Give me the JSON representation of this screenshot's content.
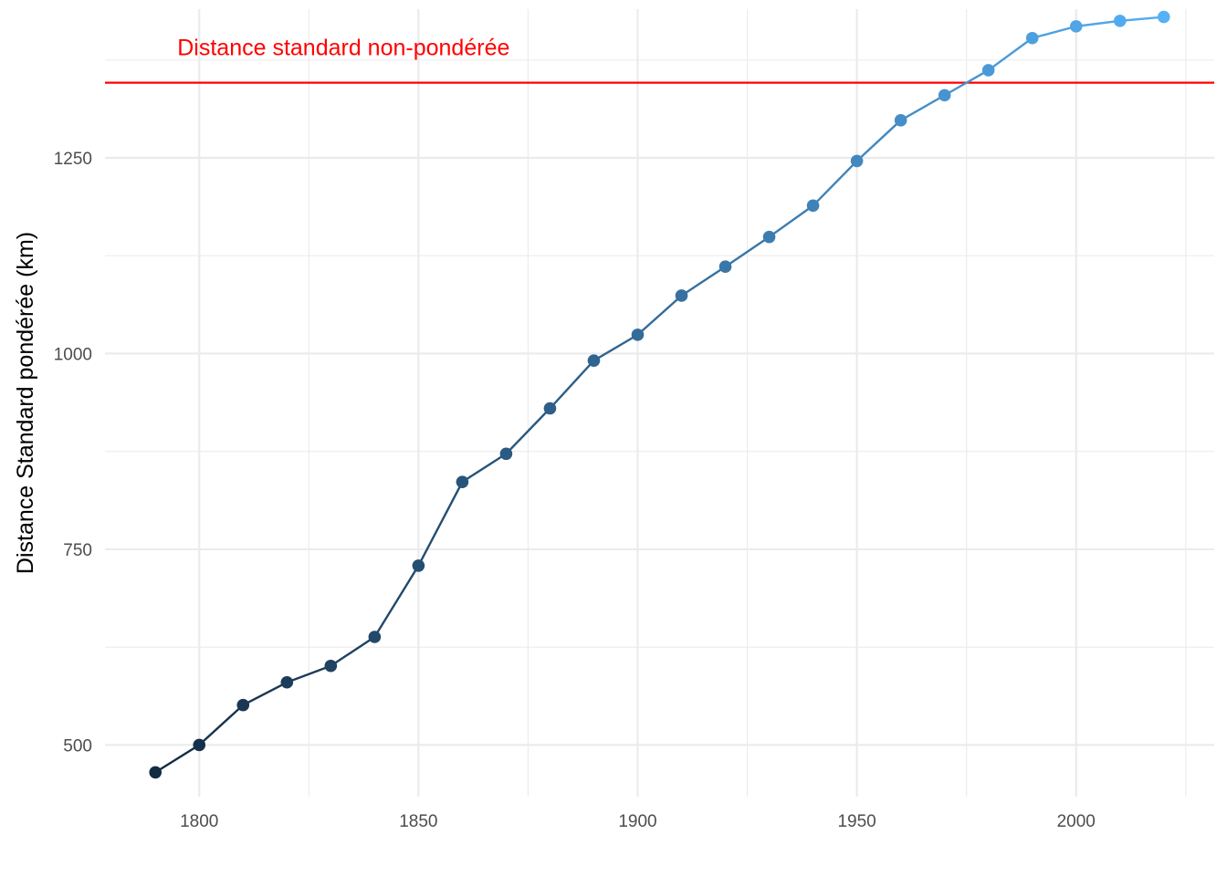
{
  "chart_data": {
    "type": "line",
    "title": "",
    "xlabel": "",
    "ylabel": "Distance Standard pondérée (km)",
    "xlim": [
      1778.5,
      2031.5
    ],
    "ylim": [
      434,
      1440
    ],
    "x_ticks": [
      1800,
      1850,
      1900,
      1950,
      2000
    ],
    "x_minor_ticks": [
      1825,
      1875,
      1925,
      1975,
      2025
    ],
    "y_ticks": [
      500,
      750,
      1000,
      1250
    ],
    "y_minor_ticks": [
      625,
      875,
      1125,
      1375
    ],
    "grid": true,
    "legend": "none",
    "color_low": "#132b43",
    "color_high": "#56b1f7",
    "series": [
      {
        "x": [
          1790,
          1800,
          1810,
          1820,
          1830,
          1840,
          1850,
          1860,
          1870,
          1880,
          1890,
          1900,
          1910,
          1920,
          1930,
          1940,
          1950,
          1960,
          1970,
          1980,
          1990,
          2000,
          2010,
          2020
        ],
        "values": [
          465,
          500,
          551,
          580,
          601,
          638,
          729,
          836,
          872,
          930,
          991,
          1024,
          1074,
          1111,
          1149,
          1189,
          1246,
          1298,
          1330,
          1362,
          1403,
          1418,
          1425,
          1430
        ]
      }
    ],
    "reference_line": {
      "y": 1346,
      "label": "Distance standard non-pondérée",
      "label_x": 1795,
      "color": "#ff0000"
    }
  }
}
